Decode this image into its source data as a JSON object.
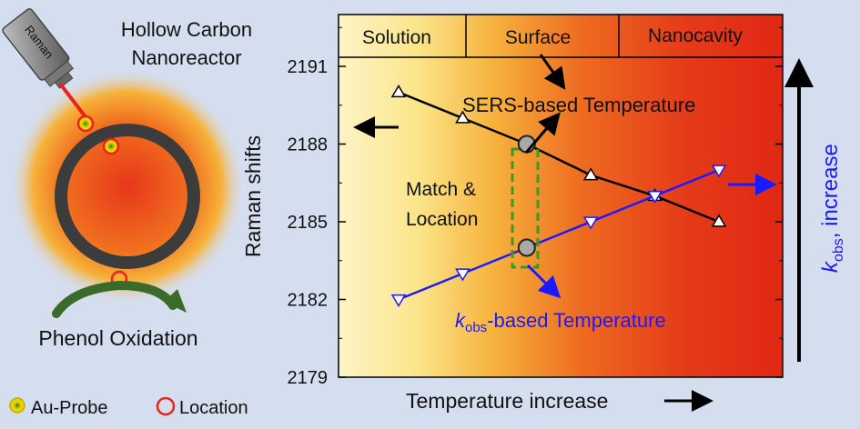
{
  "left_panel": {
    "title_line1": "Hollow Carbon",
    "title_line2": "Nanoreactor",
    "raman_label": "Raman",
    "reaction_label": "Phenol Oxidation",
    "legend_probe": "Au-Probe",
    "legend_location": "Location"
  },
  "chart": {
    "ylabel": "Raman shifts",
    "xlabel": "Temperature increase",
    "regions": [
      "Solution",
      "Surface",
      "Nanocavity"
    ],
    "yticks": [
      2179,
      2182,
      2185,
      2188,
      2191
    ],
    "ann_sers": "SERS-based Temperature",
    "ann_match_line1": "Match &",
    "ann_match_line2": "Location",
    "ann_kobs_k": "k",
    "ann_kobs_sub": "obs",
    "ann_kobs_rest": "-based Temperature",
    "right_label_k": "k",
    "right_label_sub": "obs",
    "right_label_rest": ", increase",
    "colors": {
      "sers": "#000000",
      "kobs": "#1a1aff"
    }
  },
  "chart_data": {
    "type": "line",
    "ylim": [
      2179,
      2193
    ],
    "xlabel": "Temperature increase",
    "ylabel": "Raman shifts",
    "series": [
      {
        "x": [
          1,
          2,
          3,
          4,
          5,
          6
        ],
        "values": [
          2190.0,
          2189.0,
          2188.0,
          2186.8,
          2186.0,
          2185.0
        ]
      },
      {
        "x": [
          1,
          2,
          3,
          4,
          5,
          6
        ],
        "values": [
          2182.0,
          2183.0,
          2184.0,
          2185.0,
          2186.0,
          2187.0
        ]
      }
    ],
    "highlighted_points": [
      {
        "x": 3,
        "y": 2188.0
      },
      {
        "x": 3,
        "y": 2184.0
      }
    ]
  }
}
